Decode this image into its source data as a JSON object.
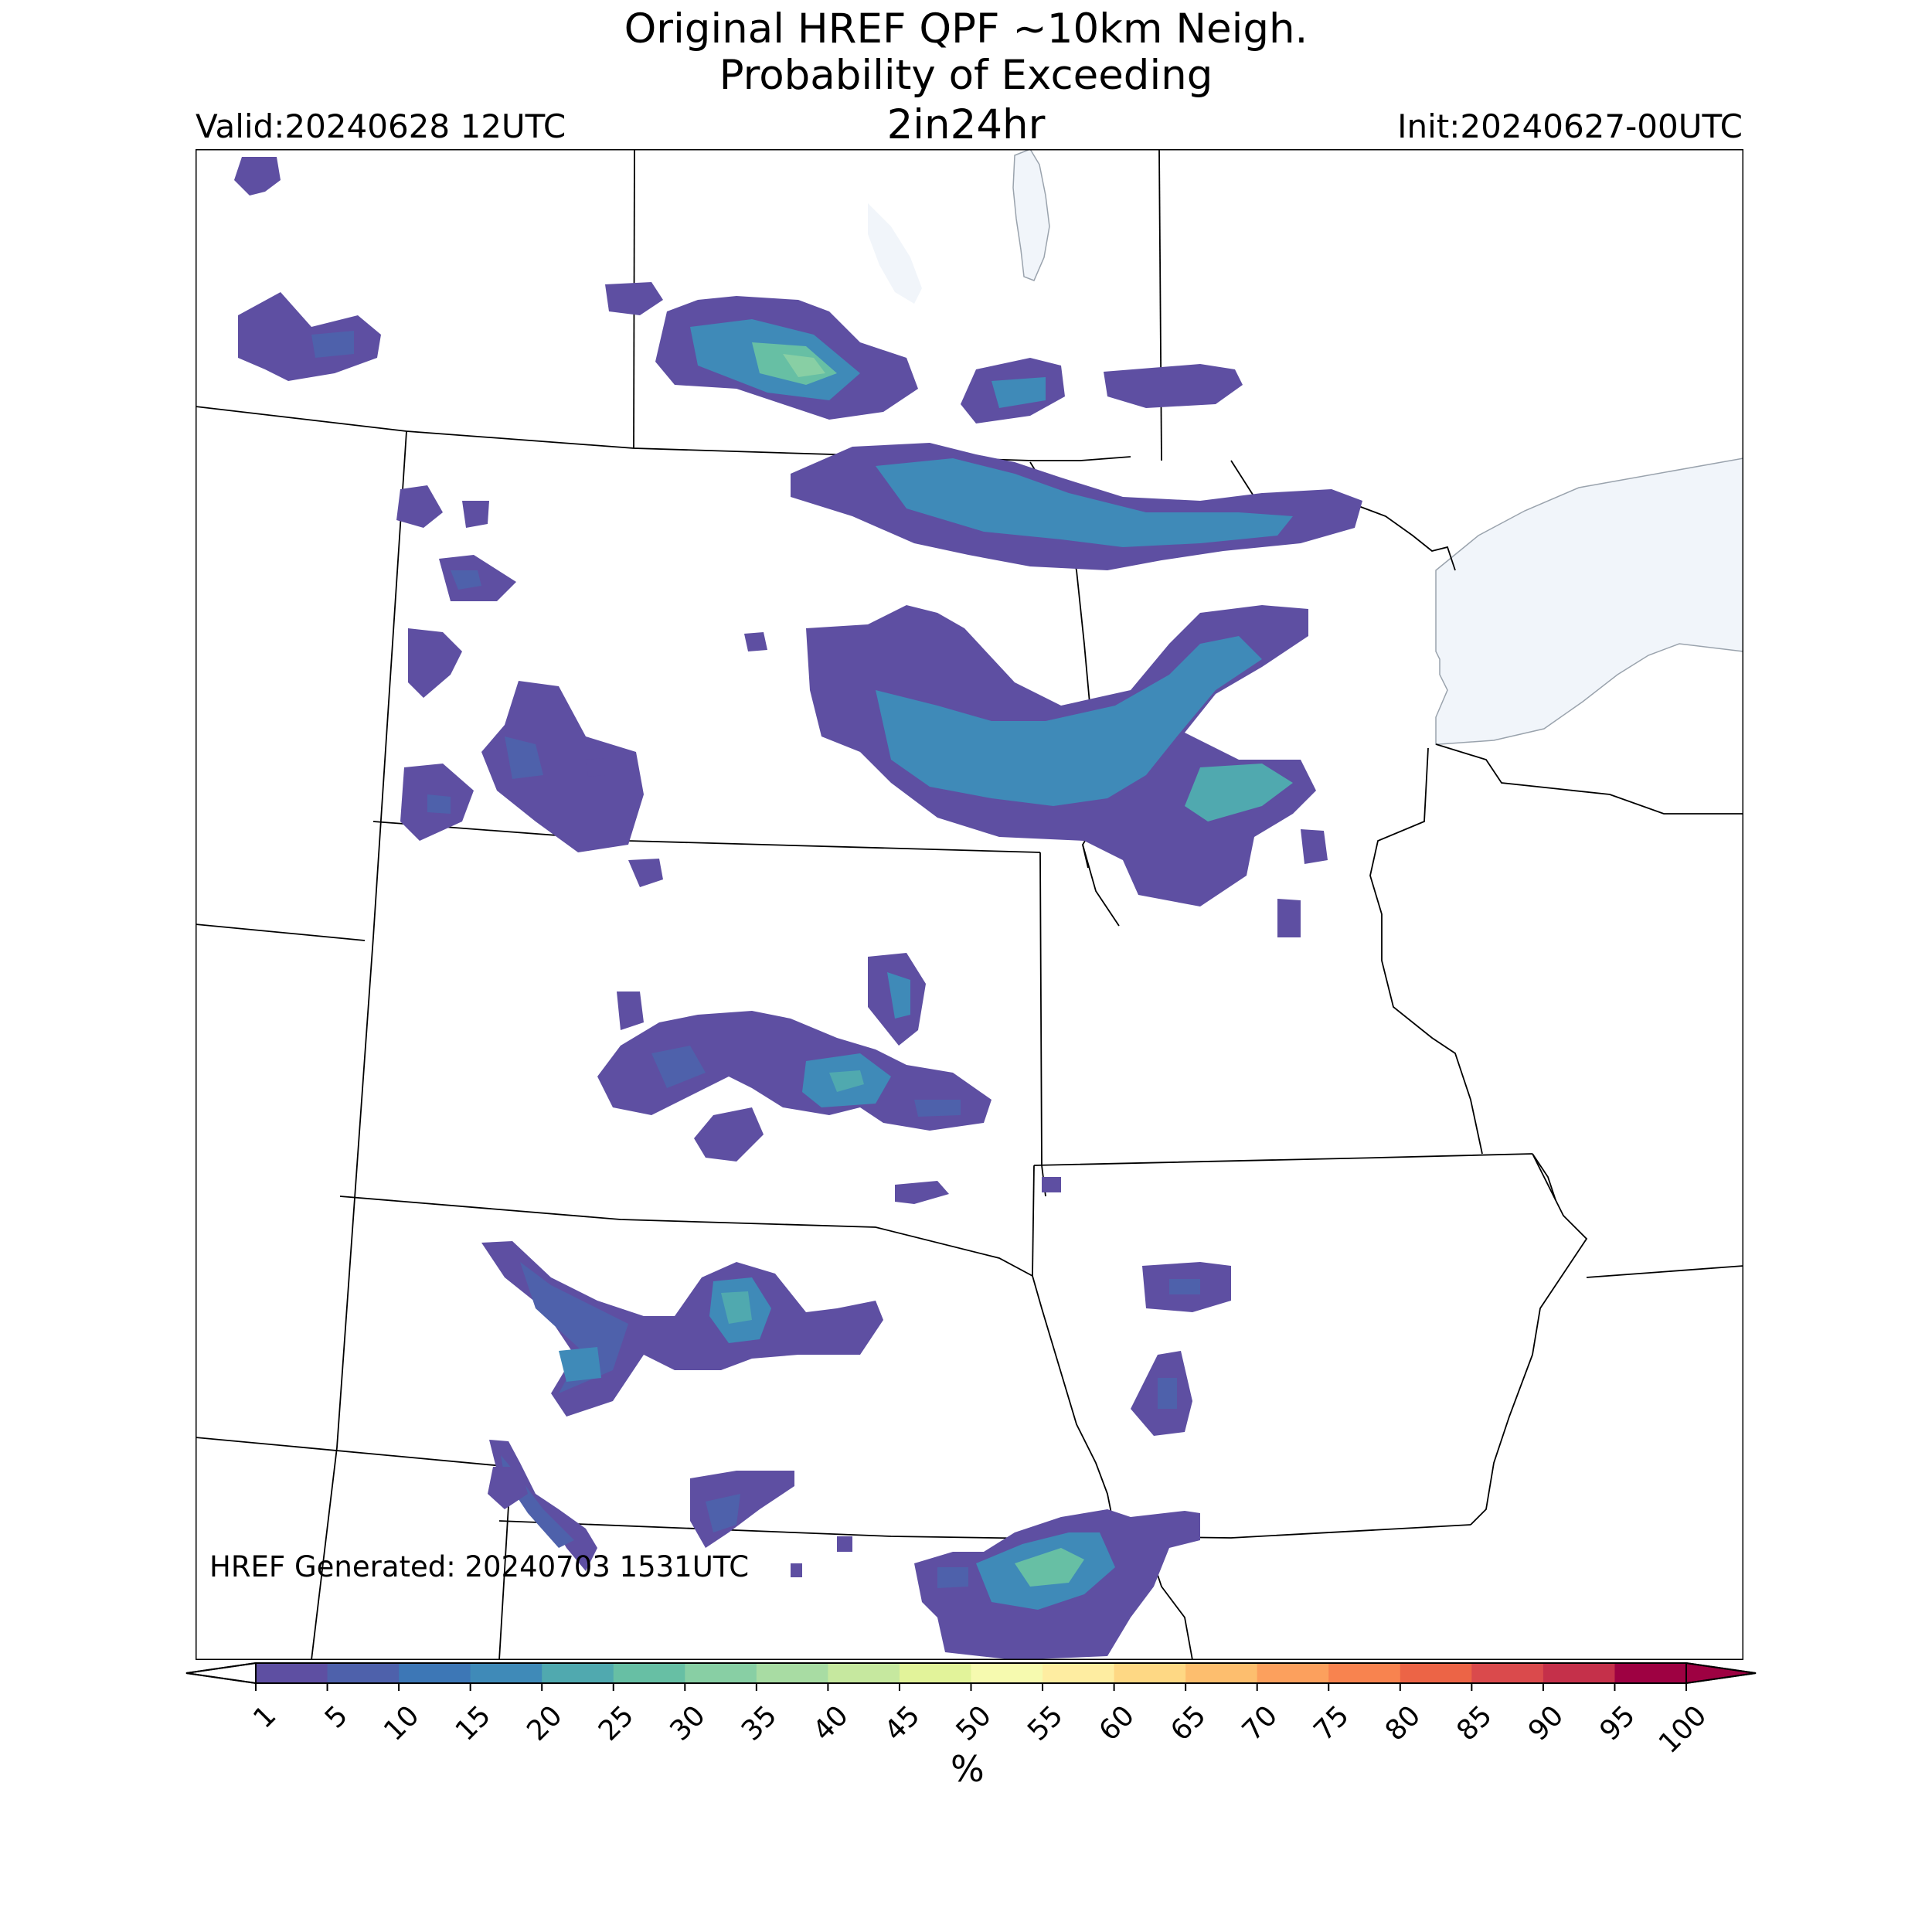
{
  "title": {
    "line1": "Original HREF QPF ~10km Neigh.",
    "line2": "Probability of Exceeding",
    "line3": "2in24hr"
  },
  "valid": "Valid:20240628 12UTC",
  "init": "Init:20240627-00UTC",
  "generated": "HREF Generated: 20240703 1531UTC",
  "colorbar": {
    "unit": "%",
    "ticks": [
      "1",
      "5",
      "10",
      "15",
      "20",
      "25",
      "30",
      "35",
      "40",
      "45",
      "50",
      "55",
      "60",
      "65",
      "70",
      "75",
      "80",
      "85",
      "90",
      "95",
      "100"
    ],
    "colors": [
      "#5e4fa2",
      "#4e61ab",
      "#3d77b6",
      "#3f8ab8",
      "#50a9af",
      "#67bfa4",
      "#88cfa4",
      "#a8dca3",
      "#c6e89f",
      "#e2f39a",
      "#f6faaf",
      "#feeda1",
      "#fed884",
      "#fdbe6e",
      "#fca05d",
      "#f8834f",
      "#ec6446",
      "#da4a4c",
      "#c5304a",
      "#9e0142"
    ],
    "under_color": "#ffffff",
    "over_color": "#9e0142"
  },
  "map": {
    "water_color": "#f1f5fa",
    "border_color": "#000000"
  }
}
